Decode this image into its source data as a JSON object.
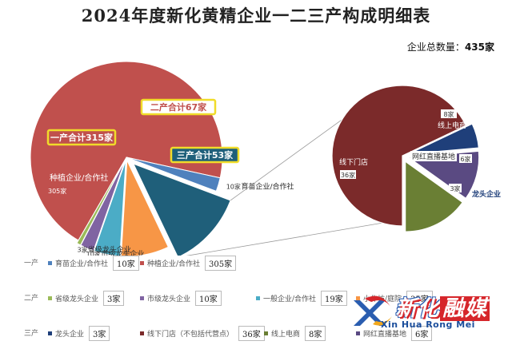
{
  "title": "2024年度新化黄精企业一二三产构成明细表",
  "total": {
    "label": "企业总数量：",
    "value": "435家"
  },
  "chart_data": {
    "type": "pie",
    "title": "2024年度新化黄精企业一二三产构成明细表",
    "main_pie": {
      "slices": [
        {
          "name": "种植企业/合作社",
          "value": 305,
          "label": "305家",
          "color": "#c0504d"
        },
        {
          "name": "育苗企业/合作社",
          "value": 10,
          "label": "10家",
          "color": "#4f81bd"
        },
        {
          "name": "三产合计",
          "value": 53,
          "label": "三产合计53家",
          "color": "#1f5f7a"
        },
        {
          "name": "小作坊/庭院",
          "value": 35,
          "label": "35家",
          "color": "#f79646"
        },
        {
          "name": "一般企业/合作社",
          "value": 19,
          "label": "19家",
          "color": "#4bacc6"
        },
        {
          "name": "市级龙头企业",
          "value": 10,
          "label": "10家",
          "color": "#8064a2"
        },
        {
          "name": "省级龙头企业",
          "value": 3,
          "label": "3家",
          "color": "#9bbb59"
        }
      ],
      "annotations": [
        {
          "text": "一产合计315家"
        },
        {
          "text": "二产合计67家"
        },
        {
          "text": "三产合计53家"
        }
      ]
    },
    "sub_pie": {
      "of": "三产合计",
      "slices": [
        {
          "name": "线下门店",
          "value": 36,
          "label": "36家",
          "color": "#7b2a2a"
        },
        {
          "name": "龙头企业",
          "value": 3,
          "label": "3家",
          "color": "#1f3f7a"
        },
        {
          "name": "网红直播基地",
          "value": 6,
          "label": "6家",
          "color": "#5a4a82"
        },
        {
          "name": "线上电商",
          "value": 8,
          "label": "8家",
          "color": "#6a7f34"
        }
      ]
    }
  },
  "legend": {
    "rows": [
      {
        "row_label": "一产",
        "items": [
          {
            "name": "育苗企业/合作社",
            "value": "10家",
            "color": "#4f81bd"
          },
          {
            "name": "种植企业/合作社",
            "value": "305家",
            "color": "#c0504d"
          }
        ]
      },
      {
        "row_label": "二产",
        "items": [
          {
            "name": "省级龙头企业",
            "value": "3家",
            "color": "#9bbb59"
          },
          {
            "name": "市级龙头企业",
            "value": "10家",
            "color": "#8064a2"
          },
          {
            "name": "一般企业/合作社",
            "value": "19家",
            "color": "#4bacc6"
          },
          {
            "name": "小作坊/庭院",
            "value": "35家",
            "color": "#f79646"
          }
        ]
      },
      {
        "row_label": "三产",
        "items": [
          {
            "name": "龙头企业",
            "value": "3家",
            "color": "#1f3f7a"
          },
          {
            "name": "线下门店（不包括代营点）",
            "value": "36家",
            "color": "#7b2a2a"
          },
          {
            "name": "线上电商",
            "value": "8家",
            "color": "#6a7f34"
          },
          {
            "name": "网红直播基地",
            "value": "6家",
            "color": "#5a4a82"
          }
        ]
      }
    ]
  },
  "watermark": {
    "cn_part1": "新化",
    "cn_part2": "融媒",
    "en": "Xin Hua Rong Mei"
  }
}
